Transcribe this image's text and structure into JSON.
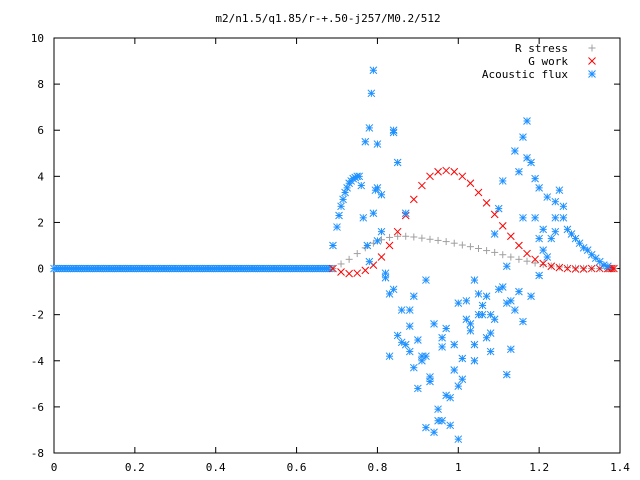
{
  "chart_data": {
    "type": "scatter",
    "title": "m2/n1.5/q1.85/r-+.50-j257/M0.2/512",
    "xlabel": "",
    "ylabel": "",
    "xlim": [
      0,
      1.4
    ],
    "ylim": [
      -8,
      10
    ],
    "x_ticks": [
      "0",
      "0.2",
      "0.4",
      "0.6",
      "0.8",
      "1",
      "1.2",
      "1.4"
    ],
    "y_ticks": [
      "-8",
      "-6",
      "-4",
      "-2",
      "0",
      "2",
      "4",
      "6",
      "8",
      "10"
    ],
    "grid": false,
    "legend_position": "top-right",
    "series": [
      {
        "name": "R stress",
        "marker": "+",
        "color": "#a0a0a0",
        "x": [
          0.69,
          0.71,
          0.73,
          0.75,
          0.77,
          0.79,
          0.81,
          0.83,
          0.85,
          0.87,
          0.89,
          0.91,
          0.93,
          0.95,
          0.97,
          0.99,
          1.01,
          1.03,
          1.05,
          1.07,
          1.09,
          1.11,
          1.13,
          1.15,
          1.17,
          1.19,
          1.21,
          1.23,
          1.25,
          1.27,
          1.29,
          1.31,
          1.33,
          1.35,
          1.37
        ],
        "y": [
          0.0,
          0.2,
          0.4,
          0.65,
          0.9,
          1.1,
          1.25,
          1.35,
          1.4,
          1.4,
          1.37,
          1.32,
          1.27,
          1.22,
          1.17,
          1.1,
          1.02,
          0.95,
          0.87,
          0.78,
          0.7,
          0.6,
          0.5,
          0.4,
          0.32,
          0.24,
          0.17,
          0.11,
          0.07,
          0.04,
          0.02,
          0.01,
          0.0,
          0.0,
          0.0
        ]
      },
      {
        "name": "G work",
        "marker": "x",
        "color": "#ff0000",
        "x": [
          0.69,
          0.71,
          0.73,
          0.75,
          0.77,
          0.79,
          0.81,
          0.83,
          0.85,
          0.87,
          0.89,
          0.91,
          0.93,
          0.95,
          0.97,
          0.99,
          1.01,
          1.03,
          1.05,
          1.07,
          1.09,
          1.11,
          1.13,
          1.15,
          1.17,
          1.19,
          1.21,
          1.23,
          1.25,
          1.27,
          1.29,
          1.31,
          1.33,
          1.35,
          1.37
        ],
        "y": [
          0.0,
          -0.15,
          -0.22,
          -0.2,
          -0.08,
          0.15,
          0.5,
          1.0,
          1.6,
          2.3,
          3.0,
          3.6,
          4.0,
          4.2,
          4.25,
          4.2,
          4.0,
          3.7,
          3.3,
          2.85,
          2.35,
          1.85,
          1.4,
          1.0,
          0.65,
          0.4,
          0.22,
          0.1,
          0.04,
          0.0,
          -0.02,
          -0.02,
          0.0,
          0.0,
          0.0
        ]
      },
      {
        "name": "Acoustic flux",
        "marker": "*",
        "color": "#1e90ff",
        "x": [
          0.69,
          0.7,
          0.705,
          0.71,
          0.715,
          0.72,
          0.725,
          0.73,
          0.735,
          0.74,
          0.745,
          0.75,
          0.755,
          0.76,
          0.765,
          0.77,
          0.775,
          0.78,
          0.785,
          0.79,
          0.795,
          0.8,
          0.81,
          0.82,
          0.83,
          0.84,
          0.85,
          0.86,
          0.87,
          0.88,
          0.89,
          0.9,
          0.91,
          0.92,
          0.93,
          0.94,
          0.95,
          0.96,
          0.97,
          0.98,
          0.99,
          1.0,
          1.01,
          1.02,
          1.03,
          1.04,
          1.05,
          1.06,
          1.07,
          1.08,
          1.09,
          1.1,
          1.11,
          1.12,
          1.13,
          1.14,
          1.15,
          1.16,
          1.17,
          1.18,
          1.19,
          1.2,
          1.21,
          1.22,
          1.23,
          1.24,
          1.25,
          1.26,
          1.27,
          1.28,
          1.29,
          1.3,
          1.31,
          1.32,
          1.33,
          1.34,
          1.35,
          1.36,
          1.37,
          0.78,
          0.8,
          0.82,
          0.84,
          0.86,
          0.88,
          0.9,
          0.92,
          0.94,
          0.96,
          0.98,
          1.0,
          1.02,
          1.04,
          1.06,
          1.08,
          1.1,
          1.12,
          1.14,
          1.16,
          1.18,
          1.2,
          1.22,
          1.24,
          1.26,
          0.79,
          0.81,
          0.83,
          0.85,
          0.87,
          0.89,
          0.91,
          0.93,
          0.95,
          0.97,
          0.99,
          1.01,
          1.03,
          1.05,
          1.07,
          1.09,
          1.11,
          1.13,
          1.15,
          1.17,
          1.19,
          1.21,
          0.8,
          0.84,
          0.88,
          0.92,
          0.96,
          1.0,
          1.04,
          1.08,
          1.12,
          1.16,
          1.2,
          1.24
        ],
        "y": [
          1.0,
          1.8,
          2.3,
          2.7,
          3.0,
          3.3,
          3.5,
          3.7,
          3.8,
          3.9,
          3.95,
          4.0,
          4.0,
          3.6,
          2.2,
          5.5,
          1.0,
          0.3,
          7.6,
          8.6,
          3.4,
          1.2,
          3.2,
          -0.2,
          -1.1,
          5.9,
          4.6,
          -3.2,
          2.4,
          -3.6,
          -4.3,
          -5.2,
          -3.8,
          -6.9,
          -4.7,
          -7.1,
          -6.6,
          -3.0,
          -5.5,
          -6.8,
          -4.4,
          -7.4,
          -3.9,
          -1.4,
          -2.7,
          -4.0,
          -1.1,
          -2.0,
          -3.0,
          -3.6,
          1.5,
          2.6,
          3.8,
          0.1,
          -1.4,
          5.1,
          4.2,
          2.2,
          6.4,
          4.6,
          2.2,
          1.3,
          1.7,
          3.1,
          1.3,
          1.6,
          3.4,
          2.2,
          1.7,
          1.5,
          1.3,
          1.1,
          0.9,
          0.8,
          0.6,
          0.45,
          0.3,
          0.15,
          0.1,
          6.1,
          5.4,
          -0.4,
          -0.9,
          -1.8,
          -2.5,
          -3.1,
          -0.5,
          -2.4,
          -3.4,
          -5.6,
          -1.5,
          -2.2,
          -3.3,
          -1.6,
          -2.8,
          -0.9,
          -4.6,
          -1.8,
          -2.3,
          -1.2,
          -0.3,
          0.5,
          2.9,
          2.7,
          2.4,
          1.6,
          -3.8,
          -2.9,
          -3.3,
          -1.2,
          -4.0,
          -4.9,
          -6.1,
          -2.6,
          -3.3,
          -4.8,
          -2.4,
          -2.0,
          -1.2,
          -2.2,
          -0.8,
          -3.5,
          -1.0,
          4.8,
          3.9,
          0.8,
          3.5,
          6.0,
          -1.8,
          -3.8,
          -6.6,
          -5.1,
          -0.5,
          -2.0,
          -1.5,
          5.7,
          3.5,
          2.2
        ]
      }
    ]
  }
}
